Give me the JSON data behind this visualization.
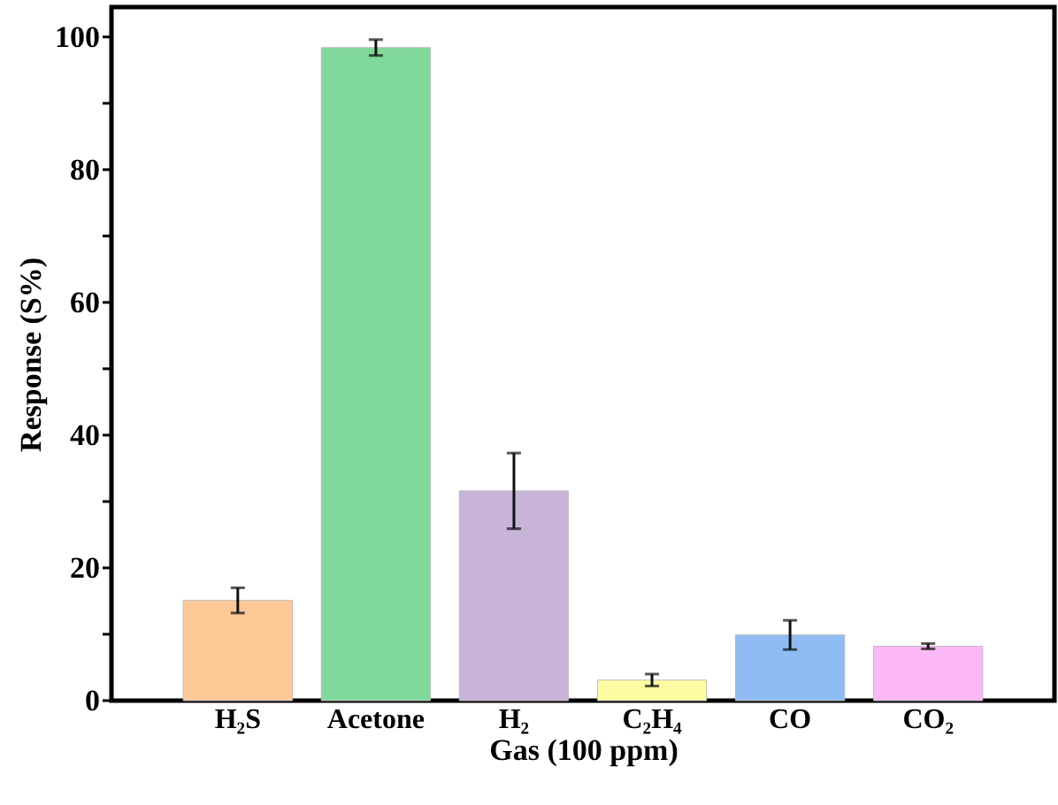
{
  "chart_data": {
    "type": "bar",
    "xlabel": "Gas (100 ppm)",
    "ylabel": "Response (S%)",
    "categories": [
      "H₂S",
      "Acetone",
      "H₂",
      "C₂H₄",
      "CO",
      "CO₂"
    ],
    "values": [
      15.1,
      98.4,
      31.6,
      3.1,
      9.9,
      8.2
    ],
    "errors": [
      1.9,
      1.2,
      5.7,
      0.9,
      2.2,
      0.4
    ],
    "colors": [
      "#fec896",
      "#80d99b",
      "#c8b3d9",
      "#fdfca0",
      "#8fbdf3",
      "#fdb8f8"
    ],
    "ylim": [
      0,
      104.5
    ],
    "yticks": [
      0,
      {
        "value": 10,
        "label": null
      },
      20,
      {
        "value": 30,
        "label": null
      },
      40,
      {
        "value": 50,
        "label": null
      },
      60,
      {
        "value": 70,
        "label": null
      },
      80,
      {
        "value": 90,
        "label": null
      },
      100
    ],
    "grid": false
  }
}
